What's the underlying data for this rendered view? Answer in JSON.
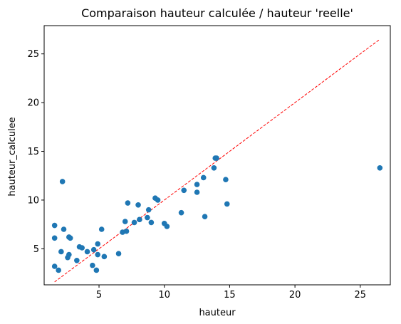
{
  "chart_data": {
    "type": "scatter",
    "title": "Comparaison hauteur calculée / hauteur 'reelle'",
    "xlabel": "hauteur",
    "ylabel": "hauteur_calculee",
    "xlim": [
      0.8,
      27.3
    ],
    "ylim": [
      1.3,
      27.9
    ],
    "xticks": [
      5,
      10,
      15,
      20,
      25
    ],
    "yticks": [
      5,
      10,
      15,
      20,
      25
    ],
    "grid": false,
    "point_color": "#1f77b4",
    "reference_line": {
      "style": "dashed",
      "color": "#ff0000",
      "from": [
        1.6,
        1.6
      ],
      "to": [
        26.5,
        26.5
      ]
    },
    "series": [
      {
        "points": [
          [
            1.6,
            7.4
          ],
          [
            1.6,
            6.1
          ],
          [
            1.6,
            3.2
          ],
          [
            1.9,
            2.8
          ],
          [
            2.1,
            4.7
          ],
          [
            2.2,
            11.9
          ],
          [
            2.3,
            7.0
          ],
          [
            2.6,
            4.1
          ],
          [
            2.7,
            6.2
          ],
          [
            2.7,
            4.4
          ],
          [
            2.8,
            6.1
          ],
          [
            3.3,
            3.8
          ],
          [
            3.5,
            5.2
          ],
          [
            3.7,
            5.1
          ],
          [
            4.1,
            4.7
          ],
          [
            4.5,
            3.3
          ],
          [
            4.6,
            4.9
          ],
          [
            4.8,
            2.8
          ],
          [
            4.9,
            5.5
          ],
          [
            4.9,
            4.4
          ],
          [
            5.2,
            7.0
          ],
          [
            5.4,
            4.2
          ],
          [
            6.5,
            4.5
          ],
          [
            6.8,
            6.7
          ],
          [
            7.0,
            7.8
          ],
          [
            7.1,
            6.8
          ],
          [
            7.2,
            9.7
          ],
          [
            7.7,
            7.7
          ],
          [
            8.0,
            9.5
          ],
          [
            8.1,
            8.0
          ],
          [
            8.7,
            8.2
          ],
          [
            8.8,
            9.0
          ],
          [
            9.0,
            7.7
          ],
          [
            9.3,
            10.2
          ],
          [
            9.5,
            10.0
          ],
          [
            10.0,
            7.6
          ],
          [
            10.2,
            7.3
          ],
          [
            11.3,
            8.7
          ],
          [
            11.5,
            11.0
          ],
          [
            12.5,
            10.8
          ],
          [
            12.5,
            11.6
          ],
          [
            13.0,
            12.3
          ],
          [
            13.1,
            8.3
          ],
          [
            13.8,
            13.3
          ],
          [
            13.9,
            14.3
          ],
          [
            14.0,
            14.3
          ],
          [
            14.7,
            12.1
          ],
          [
            14.8,
            9.6
          ],
          [
            26.5,
            13.3
          ]
        ]
      }
    ]
  }
}
